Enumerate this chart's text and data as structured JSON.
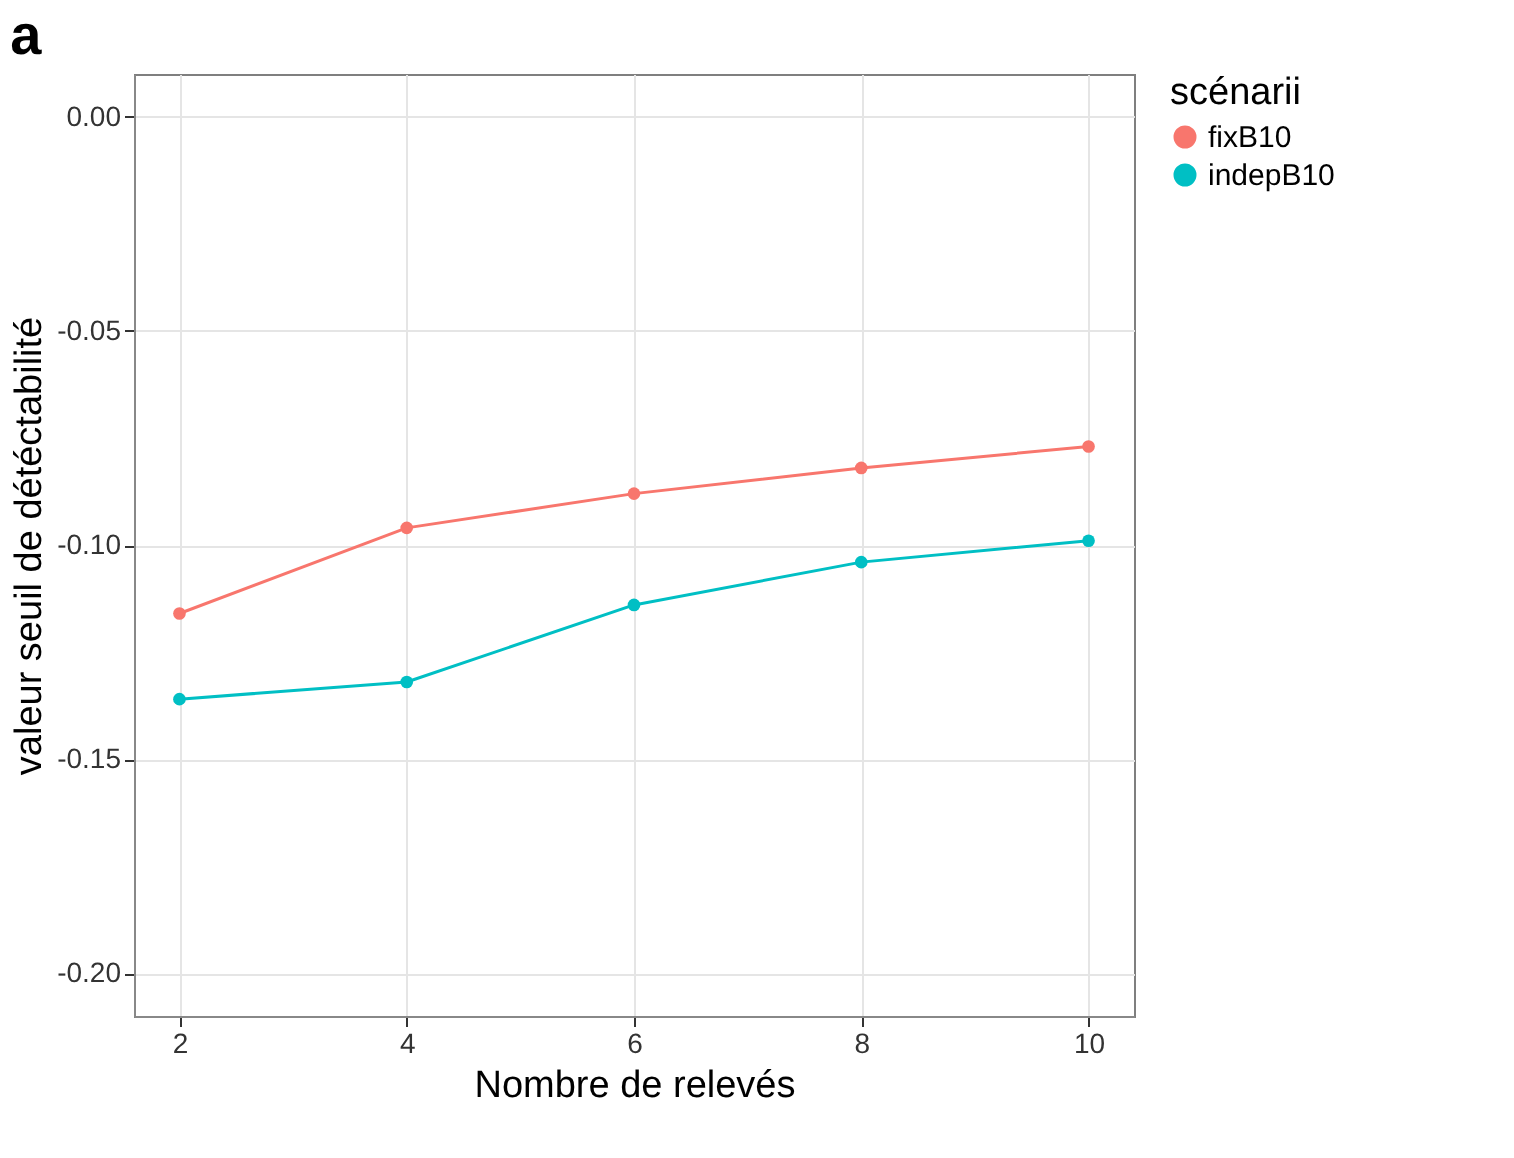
{
  "chart_data": {
    "type": "line",
    "title": "a",
    "xlabel": "Nombre de relevés",
    "ylabel": "valeur seuil de détéctabilité",
    "legend_title": "scénarii",
    "x": [
      2,
      4,
      6,
      8,
      10
    ],
    "series": [
      {
        "name": "fixB10",
        "color": "#F8766D",
        "values": [
          -0.116,
          -0.096,
          -0.088,
          -0.082,
          -0.077
        ]
      },
      {
        "name": "indepB10",
        "color": "#00BFC4",
        "values": [
          -0.136,
          -0.132,
          -0.114,
          -0.104,
          -0.099
        ]
      }
    ],
    "xlim": [
      1.6,
      10.4
    ],
    "ylim": [
      -0.21,
      0.01
    ],
    "xticks": [
      2,
      4,
      6,
      8,
      10
    ],
    "yticks": [
      {
        "value": 0,
        "label": "0.00"
      },
      {
        "value": -0.05,
        "label": "-0.05"
      },
      {
        "value": -0.1,
        "label": "-0.10"
      },
      {
        "value": -0.15,
        "label": "-0.15"
      },
      {
        "value": -0.2,
        "label": "-0.20"
      }
    ],
    "grid": true,
    "legend": "right",
    "marker": "circle",
    "line_style": "solid"
  }
}
